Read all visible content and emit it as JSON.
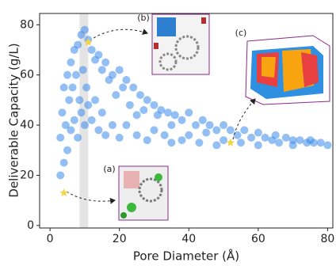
{
  "chart_data": {
    "type": "scatter",
    "xlabel": "Pore Diameter (Å)",
    "ylabel": "Deliverable Capacity (g/L)",
    "xlim": [
      -3,
      81.5
    ],
    "ylim": [
      -1,
      84.5
    ],
    "xticks": [
      0,
      20,
      40,
      60,
      80
    ],
    "yticks": [
      0,
      20,
      40,
      60,
      80
    ],
    "color": "#3b8beb",
    "shaded_xrange": [
      8.5,
      11
    ],
    "x": [
      3,
      3,
      3.5,
      4,
      4,
      4.5,
      5,
      5,
      5.5,
      6,
      6,
      6.5,
      7,
      7,
      7.5,
      8,
      8,
      8.5,
      9,
      9,
      9.5,
      10,
      10,
      10.5,
      11,
      11,
      12,
      12,
      13,
      13,
      14,
      14,
      15,
      15,
      16,
      16,
      17,
      18,
      18,
      19,
      20,
      20,
      21,
      22,
      22,
      23,
      24,
      25,
      25,
      26,
      27,
      28,
      28,
      30,
      30,
      31,
      32,
      33,
      34,
      35,
      35,
      36,
      38,
      38,
      40,
      40,
      42,
      43,
      44,
      45,
      46,
      48,
      48,
      50,
      50,
      52,
      54,
      55,
      56,
      58,
      60,
      60,
      62,
      64,
      65,
      66,
      68,
      70,
      70,
      72,
      74,
      75,
      76,
      78,
      80
    ],
    "values": [
      20,
      35,
      45,
      25,
      55,
      40,
      60,
      30,
      50,
      65,
      38,
      55,
      70,
      42,
      60,
      72,
      35,
      50,
      76,
      45,
      62,
      78,
      40,
      55,
      74,
      48,
      70,
      42,
      66,
      50,
      68,
      38,
      62,
      45,
      65,
      36,
      58,
      60,
      40,
      52,
      62,
      35,
      55,
      58,
      40,
      48,
      55,
      44,
      36,
      52,
      46,
      50,
      34,
      48,
      38,
      44,
      46,
      36,
      45,
      40,
      33,
      44,
      42,
      34,
      45,
      36,
      40,
      33,
      42,
      37,
      40,
      38,
      32,
      40,
      34,
      38,
      36,
      33,
      38,
      35,
      37,
      32,
      35,
      34,
      36,
      33,
      35,
      34,
      32,
      34,
      33,
      34,
      33,
      33,
      32
    ],
    "highlights": {
      "x": [
        4,
        11,
        52
      ],
      "values": [
        13,
        73,
        33
      ],
      "labels": [
        "(a)",
        "(b)",
        "(c)"
      ],
      "color": "#f5d547"
    }
  }
}
